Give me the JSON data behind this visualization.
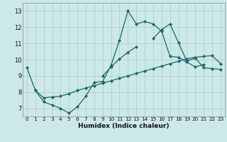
{
  "xlabel": "Humidex (Indice chaleur)",
  "bg_color": "#cce8e8",
  "grid_color": "#aacccc",
  "line_color": "#1a6666",
  "xlim": [
    -0.5,
    23.5
  ],
  "ylim": [
    6.5,
    13.5
  ],
  "xticks": [
    0,
    1,
    2,
    3,
    4,
    5,
    6,
    7,
    8,
    9,
    10,
    11,
    12,
    13,
    14,
    15,
    16,
    17,
    18,
    19,
    20,
    21,
    22,
    23
  ],
  "yticks": [
    7,
    8,
    9,
    10,
    11,
    12,
    13
  ],
  "line1_x": [
    0,
    1,
    2,
    3,
    4,
    5,
    6,
    7,
    8,
    9,
    10,
    11,
    12,
    13,
    14,
    15,
    16,
    17,
    18,
    19,
    20,
    21,
    22,
    23
  ],
  "line1_y": [
    9.5,
    8.1,
    7.4,
    7.2,
    7.0,
    6.7,
    7.1,
    7.75,
    8.6,
    8.65,
    9.65,
    11.2,
    13.0,
    12.2,
    12.35,
    12.2,
    11.75,
    10.2,
    10.15,
    9.85,
    9.55,
    9.7,
    null,
    null
  ],
  "line2_x": [
    0,
    1,
    2,
    3,
    4,
    5,
    6,
    7,
    8,
    9,
    10,
    11,
    12,
    13,
    14,
    15,
    16,
    17,
    18,
    19,
    20,
    21,
    22,
    23
  ],
  "line2_y": [
    null,
    null,
    null,
    null,
    null,
    null,
    null,
    null,
    null,
    9.0,
    9.55,
    10.05,
    10.45,
    10.8,
    null,
    11.3,
    11.85,
    12.2,
    11.05,
    9.9,
    10.1,
    9.5,
    9.45,
    9.4
  ],
  "line3_x": [
    1,
    2,
    3,
    4,
    5,
    6,
    7,
    8,
    9,
    10,
    11,
    12,
    13,
    14,
    15,
    16,
    17,
    18,
    19,
    20,
    21,
    22,
    23
  ],
  "line3_y": [
    8.1,
    7.65,
    7.7,
    7.75,
    7.9,
    8.1,
    8.25,
    8.4,
    8.55,
    8.7,
    8.85,
    9.0,
    9.15,
    9.3,
    9.45,
    9.6,
    9.75,
    9.9,
    10.05,
    10.15,
    10.2,
    10.25,
    9.75
  ]
}
